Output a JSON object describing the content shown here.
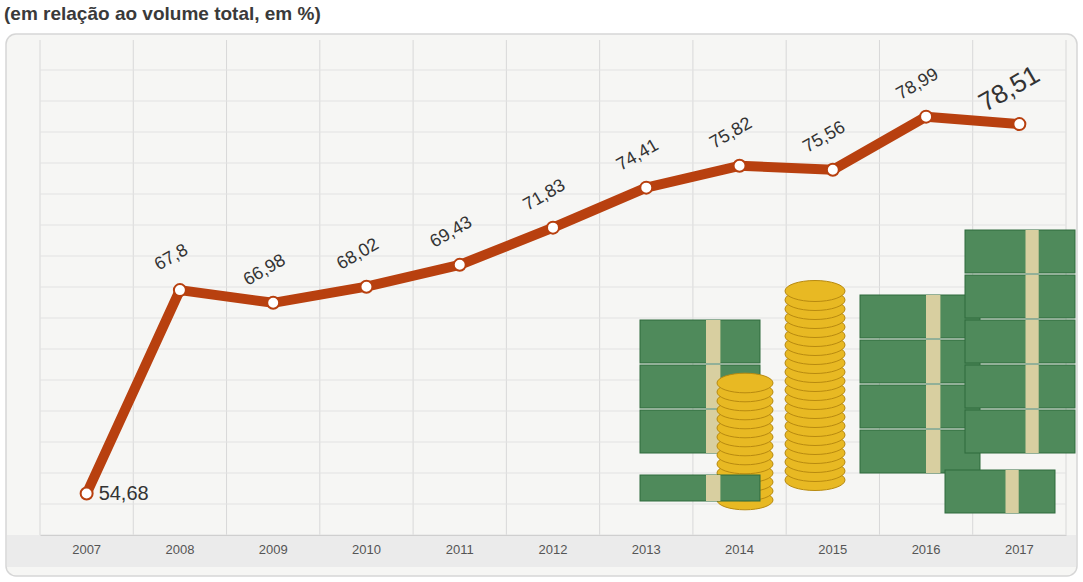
{
  "chart_data": {
    "type": "line",
    "title": "(em relação ao volume total, em %)",
    "categories": [
      "2007",
      "2008",
      "2009",
      "2010",
      "2011",
      "2012",
      "2013",
      "2014",
      "2015",
      "2016",
      "2017"
    ],
    "values": [
      54.68,
      67.8,
      66.98,
      68.02,
      69.43,
      71.83,
      74.41,
      75.82,
      75.56,
      78.99,
      78.51
    ],
    "value_labels": [
      "54,68",
      "67,8",
      "66,98",
      "68,02",
      "69,43",
      "71,83",
      "74,41",
      "75,82",
      "75,56",
      "78,99",
      "78,51"
    ],
    "color": "#b8400f",
    "marker": "circle",
    "ylim": [
      52,
      82
    ],
    "yticks": [
      52,
      54,
      56,
      58,
      60,
      62,
      64,
      66,
      68,
      70,
      72,
      74,
      76,
      78,
      80,
      82
    ],
    "grid": true,
    "data_labels": true,
    "tick_labels": "x"
  }
}
